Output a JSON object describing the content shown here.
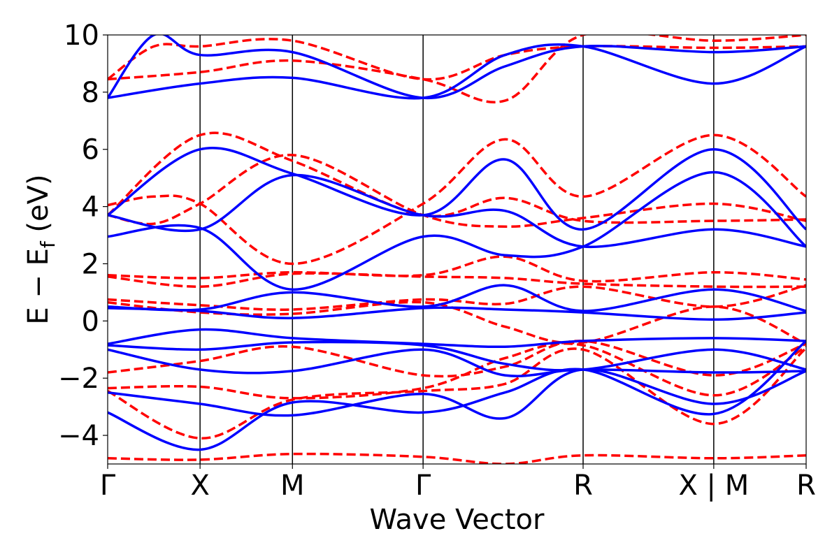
{
  "chart_data": {
    "type": "line",
    "title": "",
    "xlabel": "Wave Vector",
    "ylabel_main": "E − E",
    "ylabel_sub": "f",
    "ylabel_unit": "(eV)",
    "ylim": [
      -5,
      10
    ],
    "yticks": [
      -4,
      -2,
      0,
      2,
      4,
      6,
      8,
      10
    ],
    "ytick_labels": [
      "−4",
      "−2",
      "0",
      "2",
      "4",
      "6",
      "8",
      "10"
    ],
    "xlim": [
      0,
      7.5
    ],
    "kpoints": [
      {
        "label": "Γ",
        "x": 0
      },
      {
        "label": "X",
        "x": 1
      },
      {
        "label": "M",
        "x": 2
      },
      {
        "label": "Γ",
        "x": 3.414
      },
      {
        "label": "R",
        "x": 5.146
      },
      {
        "label": "X | M",
        "x": 6.56
      },
      {
        "label": "R",
        "x": 7.56
      }
    ],
    "grid": false,
    "series": [
      {
        "style": "dashed",
        "color": "#ff0000",
        "bands": [
          [
            [
              0,
              8.45
            ],
            [
              1,
              8.7
            ],
            [
              2,
              9.1
            ],
            [
              3.414,
              8.45
            ],
            [
              4.3,
              7.7
            ],
            [
              5.146,
              10.0
            ],
            [
              6.56,
              9.8
            ],
            [
              7.56,
              10.0
            ]
          ],
          [
            [
              0,
              8.45
            ],
            [
              0.5,
              9.6
            ],
            [
              1,
              9.6
            ],
            [
              2,
              9.8
            ],
            [
              3.414,
              8.45
            ],
            [
              4.3,
              9.3
            ],
            [
              5.146,
              9.6
            ],
            [
              6.56,
              9.55
            ],
            [
              7.56,
              9.6
            ]
          ],
          [
            [
              0,
              4.05
            ],
            [
              0.5,
              4.35
            ],
            [
              1,
              4.1
            ],
            [
              2,
              2.0
            ],
            [
              3.414,
              4.1
            ],
            [
              4.3,
              6.35
            ],
            [
              5.146,
              4.35
            ],
            [
              6.56,
              6.5
            ],
            [
              7.56,
              4.35
            ]
          ],
          [
            [
              0,
              3.7
            ],
            [
              0.5,
              3.4
            ],
            [
              1,
              4.1
            ],
            [
              2,
              5.8
            ],
            [
              3.414,
              3.7
            ],
            [
              4.3,
              3.3
            ],
            [
              5.146,
              3.6
            ],
            [
              6.56,
              4.1
            ],
            [
              7.56,
              3.5
            ]
          ],
          [
            [
              0,
              3.7
            ],
            [
              1,
              6.5
            ],
            [
              2,
              5.6
            ],
            [
              3.414,
              3.7
            ],
            [
              4.3,
              4.3
            ],
            [
              5.146,
              3.5
            ],
            [
              6.56,
              3.5
            ],
            [
              7.56,
              3.55
            ]
          ],
          [
            [
              0,
              1.6
            ],
            [
              1,
              1.5
            ],
            [
              2,
              1.7
            ],
            [
              3.414,
              1.6
            ],
            [
              4.3,
              2.25
            ],
            [
              5.146,
              1.4
            ],
            [
              6.56,
              1.7
            ],
            [
              7.56,
              1.45
            ]
          ],
          [
            [
              0,
              1.55
            ],
            [
              1,
              1.2
            ],
            [
              2,
              1.65
            ],
            [
              3.414,
              1.55
            ],
            [
              4.3,
              1.5
            ],
            [
              5.146,
              1.3
            ],
            [
              6.56,
              1.2
            ],
            [
              7.56,
              1.2
            ]
          ],
          [
            [
              0,
              0.75
            ],
            [
              1,
              0.55
            ],
            [
              2,
              0.4
            ],
            [
              3.414,
              0.75
            ],
            [
              4.3,
              0.6
            ],
            [
              5.146,
              1.2
            ],
            [
              6.56,
              0.5
            ],
            [
              7.56,
              1.25
            ]
          ],
          [
            [
              0,
              0.65
            ],
            [
              1,
              0.3
            ],
            [
              2,
              0.25
            ],
            [
              3.414,
              0.65
            ],
            [
              4.3,
              -0.2
            ],
            [
              5.146,
              -0.75
            ],
            [
              6.56,
              0.5
            ],
            [
              7.56,
              -0.8
            ]
          ],
          [
            [
              0,
              -1.8
            ],
            [
              1,
              -1.4
            ],
            [
              2,
              -0.9
            ],
            [
              3.414,
              -1.9
            ],
            [
              4.3,
              -1.6
            ],
            [
              5.146,
              -0.7
            ],
            [
              6.56,
              -1.9
            ],
            [
              7.56,
              -0.8
            ]
          ],
          [
            [
              0,
              -2.35
            ],
            [
              1,
              -2.3
            ],
            [
              2,
              -2.7
            ],
            [
              3.414,
              -2.35
            ],
            [
              4.3,
              -1.3
            ],
            [
              5.146,
              -0.85
            ],
            [
              6.56,
              -2.6
            ],
            [
              7.56,
              -0.9
            ]
          ],
          [
            [
              0,
              -2.45
            ],
            [
              1,
              -4.1
            ],
            [
              2,
              -2.75
            ],
            [
              3.414,
              -2.45
            ],
            [
              4.3,
              -2.2
            ],
            [
              5.146,
              -1.0
            ],
            [
              6.56,
              -3.6
            ],
            [
              7.56,
              -0.95
            ]
          ],
          [
            [
              0,
              -4.8
            ],
            [
              1,
              -4.85
            ],
            [
              2,
              -4.65
            ],
            [
              3.414,
              -4.75
            ],
            [
              4.3,
              -5.0
            ],
            [
              5.146,
              -4.7
            ],
            [
              6.56,
              -4.8
            ],
            [
              7.56,
              -4.7
            ]
          ]
        ]
      },
      {
        "style": "solid",
        "color": "#0000ff",
        "bands": [
          [
            [
              0,
              7.8
            ],
            [
              1,
              8.3
            ],
            [
              2,
              8.5
            ],
            [
              3.414,
              7.8
            ],
            [
              4.3,
              9.3
            ],
            [
              5.146,
              9.6
            ],
            [
              6.56,
              8.3
            ],
            [
              7.56,
              9.6
            ]
          ],
          [
            [
              0,
              7.8
            ],
            [
              0.5,
              10.0
            ],
            [
              1,
              9.3
            ],
            [
              2,
              9.4
            ],
            [
              3.414,
              7.8
            ],
            [
              4.3,
              8.9
            ],
            [
              5.146,
              9.6
            ],
            [
              6.56,
              9.4
            ],
            [
              7.56,
              9.6
            ]
          ],
          [
            [
              0,
              3.7
            ],
            [
              1,
              6.0
            ],
            [
              2,
              5.15
            ],
            [
              3.414,
              3.7
            ],
            [
              4.3,
              5.65
            ],
            [
              5.146,
              3.2
            ],
            [
              6.56,
              6.0
            ],
            [
              7.56,
              3.2
            ]
          ],
          [
            [
              0,
              3.7
            ],
            [
              1,
              3.2
            ],
            [
              2,
              5.1
            ],
            [
              3.414,
              3.7
            ],
            [
              4.3,
              3.85
            ],
            [
              5.146,
              2.6
            ],
            [
              6.56,
              3.2
            ],
            [
              7.56,
              2.6
            ]
          ],
          [
            [
              0,
              2.95
            ],
            [
              1,
              3.25
            ],
            [
              2,
              1.1
            ],
            [
              3.414,
              2.95
            ],
            [
              4.3,
              2.3
            ],
            [
              5.146,
              2.6
            ],
            [
              6.56,
              5.2
            ],
            [
              7.56,
              2.6
            ]
          ],
          [
            [
              0,
              0.5
            ],
            [
              1,
              0.4
            ],
            [
              2,
              1.0
            ],
            [
              3.414,
              0.5
            ],
            [
              4.3,
              1.25
            ],
            [
              5.146,
              0.35
            ],
            [
              6.56,
              1.1
            ],
            [
              7.56,
              0.35
            ]
          ],
          [
            [
              0,
              0.45
            ],
            [
              1,
              0.35
            ],
            [
              2,
              0.1
            ],
            [
              3.414,
              0.45
            ],
            [
              4.3,
              0.4
            ],
            [
              5.146,
              0.3
            ],
            [
              6.56,
              0.05
            ],
            [
              7.56,
              0.3
            ]
          ],
          [
            [
              0,
              -0.8
            ],
            [
              1,
              -0.3
            ],
            [
              2,
              -0.6
            ],
            [
              3.414,
              -0.8
            ],
            [
              4.3,
              -0.9
            ],
            [
              5.146,
              -0.7
            ],
            [
              6.56,
              -0.6
            ],
            [
              7.56,
              -0.7
            ]
          ],
          [
            [
              0,
              -0.85
            ],
            [
              1,
              -1.0
            ],
            [
              2,
              -0.75
            ],
            [
              3.414,
              -0.85
            ],
            [
              4.3,
              -1.5
            ],
            [
              5.146,
              -1.7
            ],
            [
              6.56,
              -1.0
            ],
            [
              7.56,
              -1.7
            ]
          ],
          [
            [
              0,
              -1.0
            ],
            [
              1,
              -1.7
            ],
            [
              2,
              -1.75
            ],
            [
              3.414,
              -1.0
            ],
            [
              4.3,
              -1.9
            ],
            [
              5.146,
              -1.7
            ],
            [
              6.56,
              -1.8
            ],
            [
              7.56,
              -1.75
            ]
          ],
          [
            [
              0,
              -2.5
            ],
            [
              1,
              -2.9
            ],
            [
              2,
              -3.3
            ],
            [
              3.414,
              -2.55
            ],
            [
              4.3,
              -3.4
            ],
            [
              5.146,
              -1.7
            ],
            [
              6.56,
              -2.9
            ],
            [
              7.56,
              -1.75
            ]
          ],
          [
            [
              0,
              -3.2
            ],
            [
              1,
              -4.5
            ],
            [
              2,
              -2.85
            ],
            [
              3.414,
              -3.2
            ],
            [
              4.3,
              -2.5
            ],
            [
              5.146,
              -1.7
            ],
            [
              6.56,
              -3.25
            ],
            [
              7.56,
              -0.7
            ]
          ]
        ]
      }
    ]
  }
}
